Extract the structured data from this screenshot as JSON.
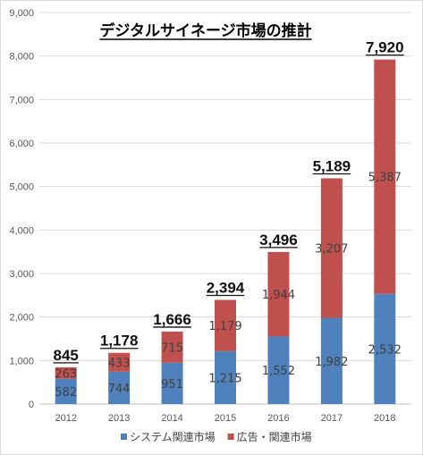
{
  "chart_data": {
    "type": "bar",
    "stacked": true,
    "title": "デジタルサイネージ市場の推計",
    "categories": [
      "2012",
      "2013",
      "2014",
      "2015",
      "2016",
      "2017",
      "2018"
    ],
    "series": [
      {
        "name": "システム関連市場",
        "color": "#4f81bd",
        "values": [
          582,
          744,
          951,
          1215,
          1552,
          1982,
          2532
        ],
        "labels": [
          "582",
          "744",
          "951",
          "1,215",
          "1,552",
          "1,982",
          "2,532"
        ]
      },
      {
        "name": "広告・関連市場",
        "color": "#c0504d",
        "values": [
          263,
          433,
          715,
          1179,
          1944,
          3207,
          5387
        ],
        "labels": [
          "263",
          "433",
          "715",
          "1,179",
          "1,944",
          "3,207",
          "5,387"
        ]
      }
    ],
    "totals": [
      "845",
      "1,178",
      "1,666",
      "2,394",
      "3,496",
      "5,189",
      "7,920"
    ],
    "ylim": [
      0,
      9000
    ],
    "yticks": [
      0,
      1000,
      2000,
      3000,
      4000,
      5000,
      6000,
      7000,
      8000,
      9000
    ],
    "ytick_labels": [
      "0",
      "1,000",
      "2,000",
      "3,000",
      "4,000",
      "5,000",
      "6,000",
      "7,000",
      "8,000",
      "9,000"
    ],
    "grid": true,
    "legend_position": "bottom"
  }
}
